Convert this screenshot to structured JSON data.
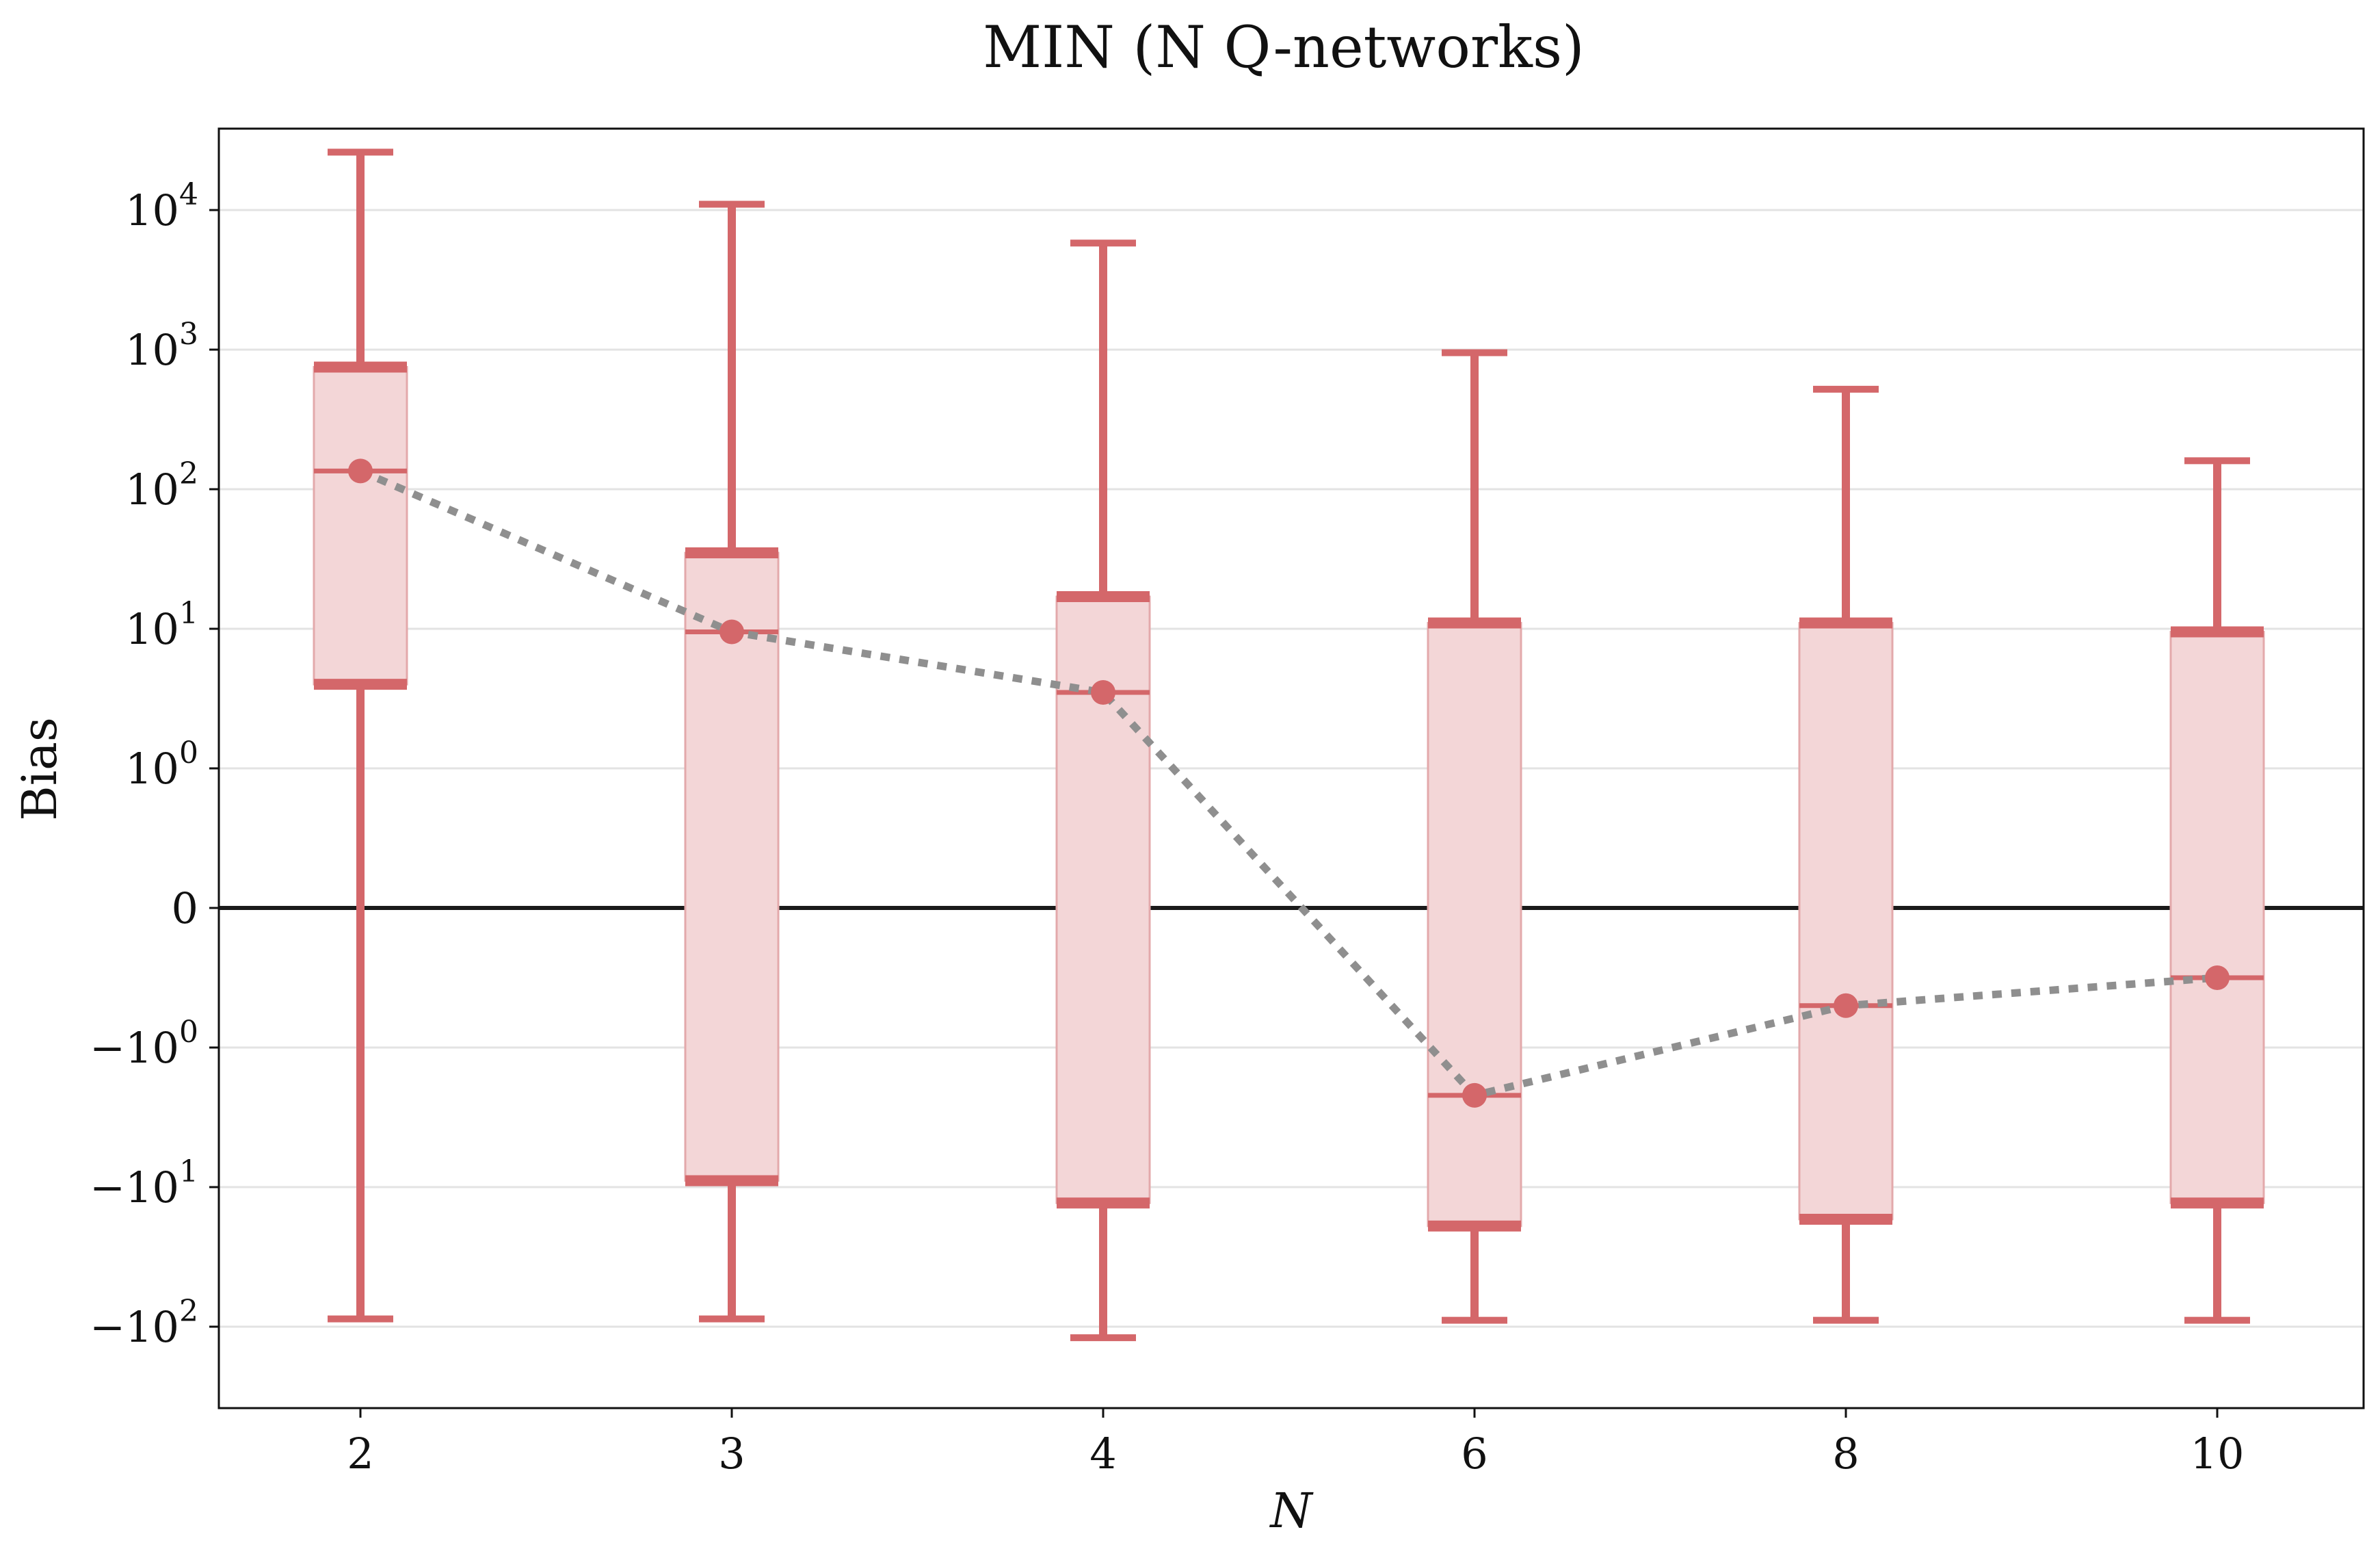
{
  "chart_data": {
    "type": "box",
    "title": "MIN (N Q-networks)",
    "xlabel": "N",
    "ylabel": "Bias",
    "y_scale": "symlog",
    "y_ticks": [
      {
        "value": 10000,
        "base": "10",
        "exp": "4"
      },
      {
        "value": 1000,
        "base": "10",
        "exp": "3"
      },
      {
        "value": 100,
        "base": "10",
        "exp": "2"
      },
      {
        "value": 10,
        "base": "10",
        "exp": "1"
      },
      {
        "value": 1,
        "base": "10",
        "exp": "0"
      },
      {
        "value": 0,
        "base": "0",
        "exp": ""
      },
      {
        "value": -1,
        "base": "−10",
        "exp": "0"
      },
      {
        "value": -10,
        "base": "−10",
        "exp": "1"
      },
      {
        "value": -100,
        "base": "−10",
        "exp": "2"
      }
    ],
    "categories": [
      "2",
      "3",
      "4",
      "6",
      "8",
      "10"
    ],
    "whisker_high": [
      26000,
      11000,
      5800,
      950,
      520,
      160
    ],
    "q3": [
      750,
      35,
      17,
      11,
      11,
      9.5
    ],
    "median": [
      135,
      9.5,
      3.5,
      -2.2,
      -0.7,
      -0.5
    ],
    "q1": [
      4,
      -9,
      -13,
      -19,
      -17,
      -13
    ],
    "whisker_low": [
      -88,
      -88,
      -120,
      -90,
      -90,
      -90
    ],
    "zero_line": true,
    "grid": "horizontal",
    "colors": {
      "box_fill": "#f3d6d7",
      "box_edge": "#e3a9ab",
      "whisker": "#d4676a",
      "median_line": "#d4676a",
      "trend_line": "#8f8f8f",
      "zero_line": "#1a1a1a",
      "grid": "#e3e3e3"
    }
  }
}
